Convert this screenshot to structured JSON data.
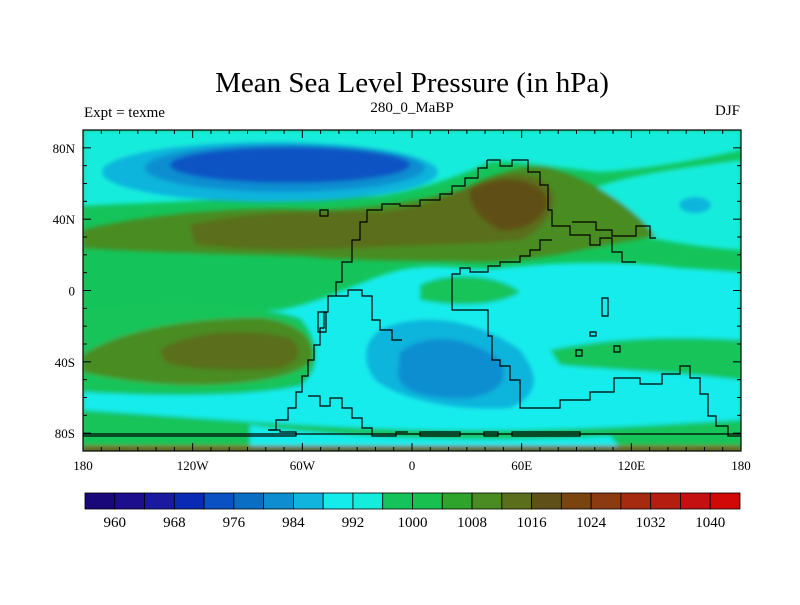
{
  "chart_data": {
    "type": "contour_map",
    "title": "Mean Sea Level Pressure (in hPa)",
    "left_label": "Expt = texme",
    "center_label": "280_0_MaBP",
    "right_label": "DJF",
    "x_ticks": [
      "180",
      "120W",
      "60W",
      "0",
      "60E",
      "120E",
      "180"
    ],
    "x_range": [
      -180,
      180
    ],
    "y_ticks": [
      "80N",
      "40N",
      "0",
      "40S",
      "80S"
    ],
    "y_range": [
      -90,
      90
    ],
    "units": "hPa",
    "colorbar": {
      "levels": [
        960,
        964,
        968,
        972,
        976,
        980,
        984,
        988,
        992,
        996,
        1000,
        1004,
        1008,
        1012,
        1016,
        1020,
        1024,
        1028,
        1032,
        1036,
        1040
      ],
      "labels": [
        "960",
        "968",
        "976",
        "984",
        "992",
        "1000",
        "1008",
        "1016",
        "1024",
        "1032",
        "1040"
      ],
      "colors": [
        "#19087a",
        "#1d0e8d",
        "#1a1aa0",
        "#0a2ab4",
        "#0a52c4",
        "#0a6ec4",
        "#0e8ed0",
        "#10b4dc",
        "#14ecec",
        "#14ecdc",
        "#14c45a",
        "#18c050",
        "#2fa42c",
        "#4a8c22",
        "#5a6e1c",
        "#5e5018",
        "#7a4410",
        "#8c3a10",
        "#a62a10",
        "#b41e10",
        "#c41010",
        "#d00808"
      ]
    }
  }
}
